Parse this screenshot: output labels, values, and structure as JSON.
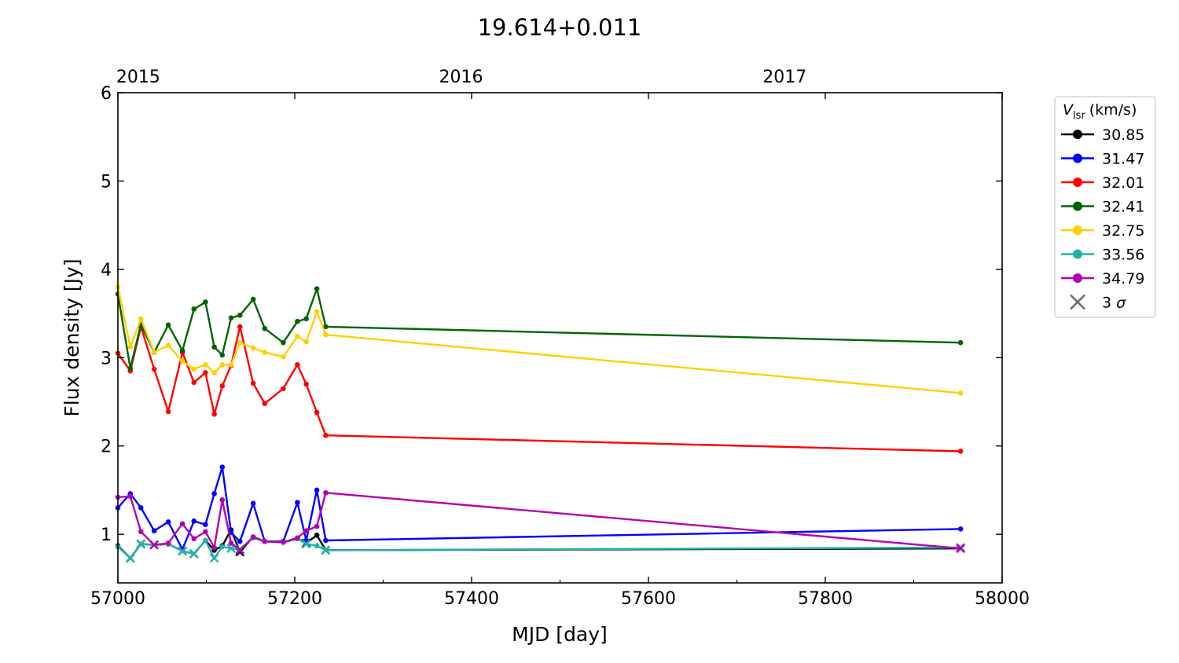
{
  "chart_data": {
    "type": "line",
    "title": "19.614+0.011",
    "xlabel": "MJD [day]",
    "ylabel": "Flux density [Jy]",
    "xlim": [
      57000,
      58000
    ],
    "ylim": [
      0.45,
      6
    ],
    "xticks": [
      57000,
      57200,
      57400,
      57600,
      57800,
      58000
    ],
    "xticks_minor": [
      57100,
      57300,
      57500,
      57700,
      57900
    ],
    "yticks": [
      1,
      2,
      3,
      4,
      5,
      6
    ],
    "top_axis": {
      "ticks": [
        {
          "label": "2015",
          "mjd": 57023
        },
        {
          "label": "2016",
          "mjd": 57388
        },
        {
          "label": "2017",
          "mjd": 57754
        }
      ]
    },
    "grid": false,
    "legend": {
      "position": "outside-right",
      "title_symbol": "V",
      "title_subscript": "lsr",
      "title_unit": "(km/s)",
      "sigma_label": "3",
      "sigma_symbol": "σ"
    },
    "series": [
      {
        "name": "30.85",
        "color": "#000000",
        "x": [
          57000,
          57014,
          57026,
          57041,
          57057,
          57073,
          57086,
          57099,
          57109,
          57118,
          57128,
          57138,
          57153,
          57166,
          57187,
          57203,
          57213,
          57225,
          57235,
          57953
        ],
        "y": [
          0.87,
          0.73,
          0.89,
          0.88,
          0.89,
          0.81,
          0.78,
          0.93,
          0.82,
          0.87,
          1.05,
          0.8,
          0.97,
          0.92,
          0.91,
          0.95,
          0.9,
          0.99,
          0.82,
          0.84
        ],
        "sigma": [
          false,
          true,
          true,
          true,
          false,
          true,
          true,
          false,
          false,
          false,
          false,
          true,
          false,
          false,
          false,
          false,
          true,
          false,
          true,
          true
        ]
      },
      {
        "name": "31.47",
        "color": "#0000ff",
        "x": [
          57000,
          57014,
          57026,
          57041,
          57057,
          57073,
          57086,
          57099,
          57109,
          57118,
          57128,
          57138,
          57153,
          57166,
          57187,
          57203,
          57213,
          57225,
          57235,
          57953
        ],
        "y": [
          1.3,
          1.46,
          1.3,
          1.04,
          1.14,
          0.83,
          1.15,
          1.11,
          1.46,
          1.76,
          1.02,
          0.92,
          1.35,
          0.92,
          0.92,
          1.36,
          0.93,
          1.5,
          0.93,
          1.06
        ],
        "sigma": [
          false,
          false,
          false,
          false,
          false,
          false,
          false,
          false,
          false,
          false,
          false,
          false,
          false,
          false,
          false,
          false,
          false,
          false,
          false,
          false
        ]
      },
      {
        "name": "32.01",
        "color": "#ff0000",
        "x": [
          57000,
          57014,
          57026,
          57041,
          57057,
          57073,
          57086,
          57099,
          57109,
          57118,
          57128,
          57138,
          57153,
          57166,
          57187,
          57203,
          57213,
          57225,
          57235,
          57953
        ],
        "y": [
          3.05,
          2.85,
          3.35,
          2.87,
          2.39,
          3.06,
          2.72,
          2.83,
          2.36,
          2.68,
          2.91,
          3.35,
          2.71,
          2.48,
          2.65,
          2.92,
          2.7,
          2.38,
          2.12,
          1.94
        ],
        "sigma": [
          false,
          false,
          false,
          false,
          false,
          false,
          false,
          false,
          false,
          false,
          false,
          false,
          false,
          false,
          false,
          false,
          false,
          false,
          false,
          false
        ]
      },
      {
        "name": "32.41",
        "color": "#006400",
        "x": [
          57000,
          57014,
          57026,
          57041,
          57057,
          57073,
          57086,
          57099,
          57109,
          57118,
          57128,
          57138,
          57153,
          57166,
          57187,
          57203,
          57213,
          57225,
          57235,
          57953
        ],
        "y": [
          3.72,
          2.88,
          3.38,
          3.06,
          3.37,
          3.08,
          3.55,
          3.63,
          3.12,
          3.03,
          3.45,
          3.48,
          3.66,
          3.33,
          3.17,
          3.41,
          3.44,
          3.78,
          3.35,
          3.17
        ],
        "sigma": [
          false,
          false,
          false,
          false,
          false,
          false,
          false,
          false,
          false,
          false,
          false,
          false,
          false,
          false,
          false,
          false,
          false,
          false,
          false,
          false
        ]
      },
      {
        "name": "32.75",
        "color": "#ffd000",
        "x": [
          57000,
          57014,
          57026,
          57041,
          57057,
          57073,
          57086,
          57099,
          57109,
          57118,
          57128,
          57138,
          57153,
          57166,
          57187,
          57203,
          57213,
          57225,
          57235,
          57953
        ],
        "y": [
          3.8,
          3.12,
          3.44,
          3.06,
          3.14,
          2.96,
          2.87,
          2.92,
          2.83,
          2.92,
          2.92,
          3.17,
          3.11,
          3.06,
          3.01,
          3.24,
          3.18,
          3.52,
          3.26,
          2.6
        ],
        "sigma": [
          false,
          false,
          false,
          false,
          false,
          false,
          false,
          false,
          false,
          false,
          false,
          false,
          false,
          false,
          false,
          false,
          false,
          false,
          false,
          false
        ]
      },
      {
        "name": "33.56",
        "color": "#20b2aa",
        "x": [
          57000,
          57014,
          57026,
          57041,
          57057,
          57073,
          57086,
          57099,
          57109,
          57118,
          57128,
          57138,
          57153,
          57166,
          57187,
          57203,
          57213,
          57225,
          57235,
          57953
        ],
        "y": [
          0.86,
          0.73,
          0.89,
          0.88,
          0.89,
          0.81,
          0.78,
          0.93,
          0.73,
          0.86,
          0.84,
          0.83,
          0.96,
          0.92,
          0.91,
          0.95,
          0.89,
          0.87,
          0.82,
          0.85
        ],
        "sigma": [
          false,
          true,
          true,
          true,
          false,
          true,
          true,
          false,
          true,
          false,
          true,
          true,
          false,
          false,
          false,
          false,
          true,
          false,
          true,
          true
        ]
      },
      {
        "name": "34.79",
        "color": "#b400b4",
        "x": [
          57000,
          57014,
          57026,
          57041,
          57057,
          57073,
          57086,
          57099,
          57109,
          57118,
          57128,
          57138,
          57153,
          57166,
          57187,
          57203,
          57213,
          57225,
          57235,
          57953
        ],
        "y": [
          1.42,
          1.43,
          1.03,
          0.88,
          0.9,
          1.12,
          0.95,
          1.03,
          0.85,
          1.39,
          0.9,
          0.82,
          0.97,
          0.92,
          0.91,
          0.96,
          1.04,
          1.09,
          1.47,
          0.84
        ],
        "sigma": [
          false,
          false,
          false,
          true,
          false,
          false,
          false,
          false,
          false,
          false,
          false,
          true,
          false,
          false,
          false,
          false,
          false,
          false,
          false,
          true
        ]
      }
    ]
  }
}
